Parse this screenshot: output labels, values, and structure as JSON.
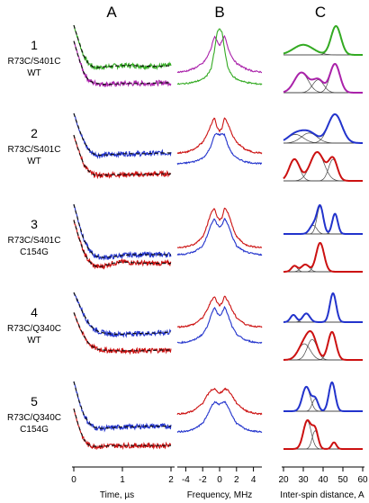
{
  "figure": {
    "column_headers": [
      "A",
      "B",
      "C"
    ],
    "rows": [
      {
        "number": "1",
        "mutant": "R73C/S401C",
        "variant": "WT"
      },
      {
        "number": "2",
        "mutant": "R73C/S401C",
        "variant": "WT"
      },
      {
        "number": "3",
        "mutant": "R73C/S401C",
        "variant": "C154G"
      },
      {
        "number": "4",
        "mutant": "R73C/Q340C",
        "variant": "WT"
      },
      {
        "number": "5",
        "mutant": "R73C/Q340C",
        "variant": "C154G"
      }
    ],
    "colors": {
      "green": "#33aa22",
      "magenta": "#aa22aa",
      "blue": "#2233cc",
      "red": "#cc1111",
      "fit": "#111111",
      "component": "#444444",
      "light_blue": "#5577ee",
      "light_red": "#ee3333",
      "light_magenta": "#cc44cc",
      "light_green": "#66dd44"
    }
  },
  "chart_data": [
    {
      "type": "line",
      "panel": "A",
      "xlabel": "Time, µs",
      "ylabel": "",
      "xlim": [
        0,
        2
      ],
      "xticks": [
        "0",
        "1",
        "2"
      ],
      "series": [
        {
          "row": 1,
          "color": "green",
          "x": [
            0,
            0.1,
            0.2,
            0.3,
            0.4,
            0.5,
            0.6,
            0.8,
            1.0,
            1.2,
            1.5,
            1.8,
            2.0
          ],
          "values": [
            1.0,
            0.78,
            0.58,
            0.47,
            0.42,
            0.41,
            0.42,
            0.43,
            0.44,
            0.44,
            0.43,
            0.43,
            0.44
          ]
        },
        {
          "row": 1,
          "color": "magenta",
          "x": [
            0,
            0.1,
            0.2,
            0.3,
            0.4,
            0.5,
            0.6,
            0.8,
            1.0,
            1.2,
            1.5,
            1.8,
            2.0
          ],
          "values": [
            0.78,
            0.55,
            0.35,
            0.24,
            0.2,
            0.19,
            0.18,
            0.18,
            0.19,
            0.19,
            0.19,
            0.2,
            0.2
          ]
        },
        {
          "row": 2,
          "color": "blue",
          "x": [
            0,
            0.1,
            0.2,
            0.3,
            0.4,
            0.5,
            0.6,
            0.8,
            1.0,
            1.2,
            1.5,
            1.8,
            2.0
          ],
          "values": [
            1.0,
            0.8,
            0.62,
            0.5,
            0.44,
            0.42,
            0.42,
            0.43,
            0.44,
            0.44,
            0.44,
            0.45,
            0.45
          ]
        },
        {
          "row": 2,
          "color": "red",
          "x": [
            0,
            0.1,
            0.2,
            0.3,
            0.4,
            0.5,
            0.6,
            0.8,
            1.0,
            1.2,
            1.5,
            1.8,
            2.0
          ],
          "values": [
            0.7,
            0.48,
            0.3,
            0.2,
            0.15,
            0.14,
            0.14,
            0.15,
            0.15,
            0.15,
            0.15,
            0.16,
            0.16
          ]
        },
        {
          "row": 3,
          "color": "blue",
          "x": [
            0,
            0.1,
            0.2,
            0.3,
            0.4,
            0.5,
            0.6,
            0.8,
            1.0,
            1.2,
            1.5,
            1.8,
            2.0
          ],
          "values": [
            1.0,
            0.75,
            0.52,
            0.38,
            0.3,
            0.27,
            0.26,
            0.27,
            0.29,
            0.3,
            0.3,
            0.3,
            0.3
          ]
        },
        {
          "row": 3,
          "color": "red",
          "x": [
            0,
            0.1,
            0.2,
            0.3,
            0.4,
            0.5,
            0.6,
            0.8,
            1.0,
            1.2,
            1.5,
            1.8,
            2.0
          ],
          "values": [
            0.78,
            0.55,
            0.34,
            0.22,
            0.15,
            0.13,
            0.14,
            0.18,
            0.2,
            0.19,
            0.18,
            0.18,
            0.18
          ]
        },
        {
          "row": 4,
          "color": "blue",
          "x": [
            0,
            0.1,
            0.2,
            0.3,
            0.4,
            0.5,
            0.6,
            0.8,
            1.0,
            1.2,
            1.5,
            1.8,
            2.0
          ],
          "values": [
            1.0,
            0.85,
            0.7,
            0.58,
            0.5,
            0.46,
            0.44,
            0.42,
            0.42,
            0.43,
            0.43,
            0.44,
            0.45
          ]
        },
        {
          "row": 4,
          "color": "red",
          "x": [
            0,
            0.1,
            0.2,
            0.3,
            0.4,
            0.5,
            0.6,
            0.8,
            1.0,
            1.2,
            1.5,
            1.8,
            2.0
          ],
          "values": [
            0.72,
            0.55,
            0.4,
            0.3,
            0.24,
            0.21,
            0.2,
            0.19,
            0.19,
            0.19,
            0.19,
            0.2,
            0.2
          ]
        },
        {
          "row": 5,
          "color": "blue",
          "x": [
            0,
            0.1,
            0.2,
            0.3,
            0.4,
            0.5,
            0.6,
            0.8,
            1.0,
            1.2,
            1.5,
            1.8,
            2.0
          ],
          "values": [
            1.0,
            0.75,
            0.55,
            0.43,
            0.37,
            0.35,
            0.35,
            0.36,
            0.37,
            0.37,
            0.38,
            0.38,
            0.38
          ]
        },
        {
          "row": 5,
          "color": "red",
          "x": [
            0,
            0.1,
            0.2,
            0.3,
            0.4,
            0.5,
            0.6,
            0.8,
            1.0,
            1.2,
            1.5,
            1.8,
            2.0
          ],
          "values": [
            0.62,
            0.38,
            0.2,
            0.12,
            0.1,
            0.1,
            0.1,
            0.11,
            0.11,
            0.11,
            0.11,
            0.11,
            0.11
          ]
        }
      ]
    },
    {
      "type": "line",
      "panel": "B",
      "xlabel": "Frequency, MHz",
      "ylabel": "",
      "xlim": [
        -5,
        5
      ],
      "xticks": [
        "-4",
        "-2",
        "0",
        "2",
        "4"
      ],
      "series": [
        {
          "row": 1,
          "color": "magenta",
          "x": [
            -5,
            -4,
            -3,
            -2,
            -1.5,
            -1,
            -0.6,
            -0.3,
            0,
            0.3,
            0.6,
            1,
            1.5,
            2,
            3,
            4,
            5
          ],
          "values": [
            0.35,
            0.36,
            0.4,
            0.47,
            0.55,
            0.68,
            0.85,
            0.78,
            0.72,
            0.78,
            0.85,
            0.68,
            0.55,
            0.47,
            0.4,
            0.36,
            0.35
          ]
        },
        {
          "row": 1,
          "color": "green",
          "x": [
            -5,
            -4,
            -3,
            -2,
            -1.5,
            -1,
            -0.6,
            -0.3,
            0,
            0.3,
            0.6,
            1,
            1.5,
            2,
            3,
            4,
            5
          ],
          "values": [
            0.18,
            0.19,
            0.21,
            0.25,
            0.3,
            0.4,
            0.65,
            0.9,
            0.95,
            0.9,
            0.65,
            0.4,
            0.3,
            0.25,
            0.21,
            0.19,
            0.18
          ]
        },
        {
          "row": 2,
          "color": "red",
          "x": [
            -5,
            -4,
            -3,
            -2,
            -1.5,
            -1,
            -0.6,
            -0.3,
            0,
            0.3,
            0.6,
            1,
            1.5,
            2,
            3,
            4,
            5
          ],
          "values": [
            0.45,
            0.46,
            0.5,
            0.6,
            0.7,
            0.85,
            0.95,
            0.8,
            0.75,
            0.8,
            0.95,
            0.85,
            0.7,
            0.6,
            0.5,
            0.46,
            0.45
          ]
        },
        {
          "row": 2,
          "color": "blue",
          "x": [
            -5,
            -4,
            -3,
            -2,
            -1.5,
            -1,
            -0.6,
            -0.3,
            0,
            0.3,
            0.6,
            1,
            1.5,
            2,
            3,
            4,
            5
          ],
          "values": [
            0.3,
            0.31,
            0.33,
            0.38,
            0.44,
            0.55,
            0.7,
            0.72,
            0.7,
            0.72,
            0.7,
            0.55,
            0.44,
            0.38,
            0.33,
            0.31,
            0.3
          ]
        },
        {
          "row": 3,
          "color": "red",
          "x": [
            -5,
            -4,
            -3,
            -2,
            -1.5,
            -1,
            -0.6,
            -0.3,
            0,
            0.3,
            0.6,
            1,
            1.5,
            2,
            3,
            4,
            5
          ],
          "values": [
            0.4,
            0.41,
            0.44,
            0.55,
            0.7,
            0.88,
            0.95,
            0.82,
            0.78,
            0.82,
            0.95,
            0.88,
            0.7,
            0.55,
            0.44,
            0.41,
            0.4
          ]
        },
        {
          "row": 3,
          "color": "blue",
          "x": [
            -5,
            -4,
            -3,
            -2,
            -1.5,
            -1,
            -0.6,
            -0.3,
            0,
            0.3,
            0.6,
            1,
            1.5,
            2,
            3,
            4,
            5
          ],
          "values": [
            0.3,
            0.31,
            0.34,
            0.42,
            0.55,
            0.72,
            0.8,
            0.72,
            0.68,
            0.72,
            0.8,
            0.72,
            0.55,
            0.42,
            0.34,
            0.31,
            0.3
          ]
        },
        {
          "row": 4,
          "color": "red",
          "x": [
            -5,
            -4,
            -3,
            -2,
            -1.5,
            -1,
            -0.6,
            -0.3,
            0,
            0.3,
            0.6,
            1,
            1.5,
            2,
            3,
            4,
            5
          ],
          "values": [
            0.52,
            0.53,
            0.56,
            0.65,
            0.75,
            0.88,
            0.95,
            0.86,
            0.82,
            0.86,
            0.95,
            0.88,
            0.75,
            0.65,
            0.56,
            0.53,
            0.52
          ]
        },
        {
          "row": 4,
          "color": "blue",
          "x": [
            -5,
            -4,
            -3,
            -2,
            -1.5,
            -1,
            -0.6,
            -0.3,
            0,
            0.3,
            0.6,
            1,
            1.5,
            2,
            3,
            4,
            5
          ],
          "values": [
            0.3,
            0.31,
            0.34,
            0.42,
            0.52,
            0.68,
            0.8,
            0.72,
            0.68,
            0.72,
            0.8,
            0.68,
            0.52,
            0.42,
            0.34,
            0.31,
            0.3
          ]
        },
        {
          "row": 5,
          "color": "red",
          "x": [
            -5,
            -4,
            -3,
            -2,
            -1.5,
            -1,
            -0.6,
            -0.3,
            0,
            0.3,
            0.6,
            1,
            1.5,
            2,
            3,
            4,
            5
          ],
          "values": [
            0.55,
            0.56,
            0.6,
            0.7,
            0.8,
            0.88,
            0.9,
            0.86,
            0.84,
            0.86,
            0.9,
            0.88,
            0.8,
            0.7,
            0.6,
            0.56,
            0.55
          ]
        },
        {
          "row": 5,
          "color": "blue",
          "x": [
            -5,
            -4,
            -3,
            -2,
            -1.5,
            -1,
            -0.6,
            -0.3,
            0,
            0.3,
            0.6,
            1,
            1.5,
            2,
            3,
            4,
            5
          ],
          "values": [
            0.3,
            0.31,
            0.34,
            0.42,
            0.52,
            0.65,
            0.72,
            0.7,
            0.68,
            0.7,
            0.72,
            0.65,
            0.52,
            0.42,
            0.34,
            0.31,
            0.3
          ]
        }
      ]
    },
    {
      "type": "line",
      "panel": "C",
      "xlabel": "Inter-spin distance, A",
      "ylabel": "",
      "xlim": [
        20,
        60
      ],
      "xticks": [
        "20",
        "30",
        "40",
        "50",
        "60"
      ],
      "series": [
        {
          "row": 1,
          "color": "green",
          "components": [
            {
              "center": 30,
              "width": 5,
              "height": 0.35
            },
            {
              "center": 46.5,
              "width": 2.5,
              "height": 1.0
            }
          ]
        },
        {
          "row": 1,
          "color": "magenta",
          "components": [
            {
              "center": 29,
              "width": 3.5,
              "height": 0.7
            },
            {
              "center": 37.5,
              "width": 2.8,
              "height": 0.45
            },
            {
              "center": 46,
              "width": 2.5,
              "height": 1.0
            }
          ]
        },
        {
          "row": 2,
          "color": "blue",
          "components": [
            {
              "center": 26,
              "width": 4,
              "height": 0.3
            },
            {
              "center": 33,
              "width": 4,
              "height": 0.35
            },
            {
              "center": 46,
              "width": 3.5,
              "height": 1.0
            }
          ]
        },
        {
          "row": 2,
          "color": "red",
          "components": [
            {
              "center": 25.5,
              "width": 2.6,
              "height": 0.75
            },
            {
              "center": 37,
              "width": 3.5,
              "height": 1.0
            },
            {
              "center": 45,
              "width": 2.2,
              "height": 0.75
            }
          ]
        },
        {
          "row": 3,
          "color": "blue",
          "components": [
            {
              "center": 35,
              "width": 1.8,
              "height": 0.3
            },
            {
              "center": 38.5,
              "width": 1.6,
              "height": 0.95
            },
            {
              "center": 46,
              "width": 1.4,
              "height": 0.7
            }
          ]
        },
        {
          "row": 3,
          "color": "red",
          "components": [
            {
              "center": 25.5,
              "width": 1.5,
              "height": 0.2
            },
            {
              "center": 31,
              "width": 2,
              "height": 0.25
            },
            {
              "center": 38.5,
              "width": 2,
              "height": 1.0
            }
          ]
        },
        {
          "row": 4,
          "color": "blue",
          "components": [
            {
              "center": 25,
              "width": 1.5,
              "height": 0.25
            },
            {
              "center": 31.5,
              "width": 1.8,
              "height": 0.3
            },
            {
              "center": 45,
              "width": 1.6,
              "height": 1.0
            }
          ]
        },
        {
          "row": 4,
          "color": "red",
          "components": [
            {
              "center": 30.5,
              "width": 3,
              "height": 0.55
            },
            {
              "center": 34.5,
              "width": 2.5,
              "height": 0.7
            },
            {
              "center": 44.5,
              "width": 2,
              "height": 0.95
            }
          ]
        },
        {
          "row": 5,
          "color": "blue",
          "components": [
            {
              "center": 31.5,
              "width": 2,
              "height": 0.8
            },
            {
              "center": 36,
              "width": 1.5,
              "height": 0.4
            },
            {
              "center": 44.5,
              "width": 1.6,
              "height": 0.95
            }
          ]
        },
        {
          "row": 5,
          "color": "red",
          "components": [
            {
              "center": 32,
              "width": 2,
              "height": 0.85
            },
            {
              "center": 36,
              "width": 1.5,
              "height": 0.55
            },
            {
              "center": 45.5,
              "width": 1.2,
              "height": 0.2
            }
          ]
        }
      ]
    }
  ]
}
